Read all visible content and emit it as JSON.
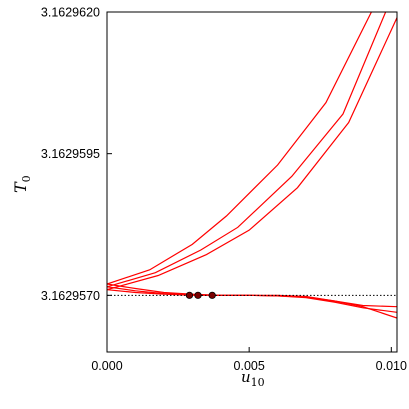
{
  "chart_data": {
    "type": "line",
    "xlabel": "u",
    "xlabel_sub": "10",
    "ylabel": "T",
    "ylabel_sub": "0",
    "xlim": [
      0.0,
      0.0102
    ],
    "ylim": [
      3.162956,
      3.162962
    ],
    "x_ticks": [
      0.0,
      0.005,
      0.01
    ],
    "x_tick_labels": [
      "0.000",
      "0.005",
      "0.010"
    ],
    "y_ticks": [
      3.162957,
      3.1629595,
      3.162962
    ],
    "y_tick_labels": [
      "3.1629570",
      "3.1629595",
      "3.1629620"
    ],
    "reference_line": {
      "y": 3.162957,
      "style": "dotted"
    },
    "line_color": "#ff0000",
    "marker_color": "#7a0000",
    "series": [
      {
        "x": [
          0.0,
          0.0015,
          0.003,
          0.0042,
          0.006,
          0.0077,
          0.0093
        ],
        "y": [
          3.1629572,
          3.16295745,
          3.1629579,
          3.1629584,
          3.1629593,
          3.1629604,
          3.162962
        ]
      },
      {
        "x": [
          0.0,
          0.0017,
          0.0033,
          0.0046,
          0.0065,
          0.0083,
          0.0098
        ],
        "y": [
          3.16295715,
          3.1629574,
          3.1629578,
          3.1629582,
          3.1629591,
          3.1629602,
          3.162962
        ]
      },
      {
        "x": [
          0.0,
          0.0018,
          0.0035,
          0.005,
          0.0067,
          0.0085,
          0.0102
        ],
        "y": [
          3.1629571,
          3.16295735,
          3.16295772,
          3.16295815,
          3.1629589,
          3.16296005,
          3.1629619
        ]
      },
      {
        "x": [
          0.0,
          0.001,
          0.002,
          0.003,
          0.004,
          0.005,
          0.006,
          0.007,
          0.008,
          0.009,
          0.0102
        ],
        "y": [
          3.1629572,
          3.16295712,
          3.16295705,
          3.16295702,
          3.162957,
          3.162957,
          3.162957,
          3.16295698,
          3.1629569,
          3.1629568,
          3.1629566
        ]
      },
      {
        "x": [
          0.0,
          0.001,
          0.002,
          0.003,
          0.004,
          0.005,
          0.006,
          0.007,
          0.008,
          0.009,
          0.0102
        ],
        "y": [
          3.16295715,
          3.16295708,
          3.16295703,
          3.16295701,
          3.162957,
          3.162957,
          3.16295699,
          3.16295696,
          3.16295688,
          3.16295678,
          3.1629567
        ]
      },
      {
        "x": [
          0.0,
          0.001,
          0.002,
          0.003,
          0.004,
          0.005,
          0.006,
          0.007,
          0.008,
          0.009,
          0.0102
        ],
        "y": [
          3.1629571,
          3.16295705,
          3.16295702,
          3.162957,
          3.162957,
          3.162957,
          3.16295699,
          3.16295697,
          3.1629569,
          3.16295682,
          3.1629568
        ]
      }
    ],
    "markers": [
      {
        "x": 0.0029,
        "y": 3.162957
      },
      {
        "x": 0.0032,
        "y": 3.162957
      },
      {
        "x": 0.0037,
        "y": 3.162957
      }
    ],
    "grid": false,
    "legend": "none"
  }
}
